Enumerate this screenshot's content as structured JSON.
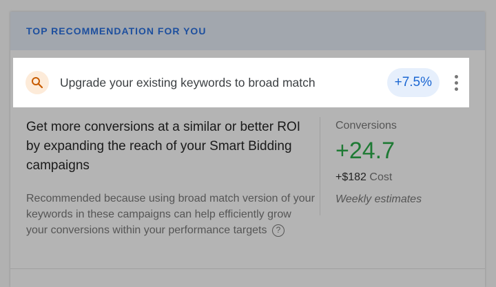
{
  "header": {
    "title": "TOP RECOMMENDATION FOR YOU"
  },
  "recommendation": {
    "icon": "search-icon",
    "text": "Upgrade your existing keywords to broad match",
    "badge": "+7.5%",
    "menu_icon": "more-vert-icon"
  },
  "body": {
    "title": "Get more conversions at a similar or better ROI by expanding the reach of your Smart Bidding campaigns",
    "description": "Recommended because using broad match version of your keywords in these campaigns can help efficiently grow your conversions within your performance targets",
    "help_icon": "help-icon"
  },
  "stats": {
    "label": "Conversions",
    "value": "+24.7",
    "cost_value": "+$182",
    "cost_label": "Cost",
    "note": "Weekly estimates"
  },
  "colors": {
    "accent": "#1a66d2",
    "positive": "#1e7a34",
    "icon": "#c75b00"
  }
}
